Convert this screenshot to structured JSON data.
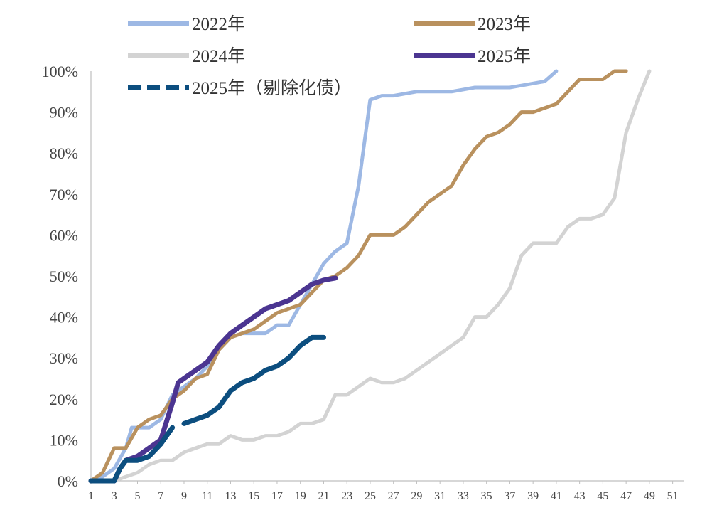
{
  "chart_data": {
    "type": "line",
    "title": "",
    "xlabel": "",
    "ylabel": "",
    "xlim": [
      1,
      52
    ],
    "ylim": [
      0,
      100
    ],
    "grid": false,
    "legend_position": "top",
    "x_ticks": [
      1,
      3,
      5,
      7,
      9,
      11,
      13,
      15,
      17,
      19,
      21,
      23,
      25,
      27,
      29,
      31,
      33,
      35,
      37,
      39,
      41,
      43,
      45,
      47,
      49,
      51
    ],
    "x_tick_labels": [
      "1",
      "3",
      "5",
      "7",
      "9",
      "11",
      "13",
      "15",
      "17",
      "19",
      "21",
      "23",
      "25",
      "27",
      "29",
      "31",
      "33",
      "35",
      "37",
      "39",
      "41",
      "43",
      "45",
      "47",
      "49",
      "51"
    ],
    "y_ticks": [
      0,
      10,
      20,
      30,
      40,
      50,
      60,
      70,
      80,
      90,
      100
    ],
    "y_tick_labels": [
      "0%",
      "10%",
      "20%",
      "30%",
      "40%",
      "50%",
      "60%",
      "70%",
      "80%",
      "90%",
      "100%"
    ],
    "series": [
      {
        "name": "2022年",
        "color": "#9db8e4",
        "style": "solid",
        "legend_row": 0,
        "legend_col": 0,
        "points": [
          [
            1,
            0
          ],
          [
            2,
            1
          ],
          [
            3,
            3
          ],
          [
            4,
            8
          ],
          [
            4.5,
            13
          ],
          [
            5,
            13
          ],
          [
            6,
            13
          ],
          [
            7,
            15
          ],
          [
            8,
            21
          ],
          [
            9,
            23
          ],
          [
            10,
            25
          ],
          [
            11,
            28
          ],
          [
            12,
            32
          ],
          [
            13,
            35
          ],
          [
            14,
            36
          ],
          [
            15,
            36
          ],
          [
            16,
            36
          ],
          [
            17,
            38
          ],
          [
            18,
            38
          ],
          [
            19,
            43
          ],
          [
            20,
            48
          ],
          [
            21,
            53
          ],
          [
            22,
            56
          ],
          [
            23,
            58
          ],
          [
            24,
            72
          ],
          [
            25,
            93
          ],
          [
            26,
            94
          ],
          [
            27,
            94
          ],
          [
            28,
            94.5
          ],
          [
            29,
            95
          ],
          [
            30,
            95
          ],
          [
            31,
            95
          ],
          [
            32,
            95
          ],
          [
            33,
            95.5
          ],
          [
            34,
            96
          ],
          [
            35,
            96
          ],
          [
            36,
            96
          ],
          [
            37,
            96
          ],
          [
            38,
            96.5
          ],
          [
            39,
            97
          ],
          [
            40,
            97.5
          ],
          [
            41,
            100
          ]
        ]
      },
      {
        "name": "2023年",
        "color": "#b9915e",
        "style": "solid",
        "legend_row": 0,
        "legend_col": 1,
        "points": [
          [
            1,
            0
          ],
          [
            2,
            2
          ],
          [
            3,
            8
          ],
          [
            4,
            8
          ],
          [
            5,
            13
          ],
          [
            6,
            15
          ],
          [
            7,
            16
          ],
          [
            8,
            20
          ],
          [
            9,
            22
          ],
          [
            10,
            25
          ],
          [
            11,
            26
          ],
          [
            12,
            32
          ],
          [
            13,
            35
          ],
          [
            14,
            36
          ],
          [
            15,
            37
          ],
          [
            16,
            39
          ],
          [
            17,
            41
          ],
          [
            18,
            42
          ],
          [
            19,
            43
          ],
          [
            20,
            46
          ],
          [
            21,
            49
          ],
          [
            22,
            50
          ],
          [
            23,
            52
          ],
          [
            24,
            55
          ],
          [
            25,
            60
          ],
          [
            26,
            60
          ],
          [
            27,
            60
          ],
          [
            28,
            62
          ],
          [
            29,
            65
          ],
          [
            30,
            68
          ],
          [
            31,
            70
          ],
          [
            32,
            72
          ],
          [
            33,
            77
          ],
          [
            34,
            81
          ],
          [
            35,
            84
          ],
          [
            36,
            85
          ],
          [
            37,
            87
          ],
          [
            38,
            90
          ],
          [
            39,
            90
          ],
          [
            40,
            91
          ],
          [
            41,
            92
          ],
          [
            42,
            95
          ],
          [
            43,
            98
          ],
          [
            44,
            98
          ],
          [
            45,
            98
          ],
          [
            46,
            100
          ],
          [
            47,
            101
          ]
        ]
      },
      {
        "name": "2024年",
        "color": "#d3d3d3",
        "style": "solid",
        "legend_row": 1,
        "legend_col": 0,
        "points": [
          [
            1,
            0
          ],
          [
            3,
            0
          ],
          [
            4,
            1
          ],
          [
            5,
            2
          ],
          [
            6,
            4
          ],
          [
            7,
            5
          ],
          [
            8,
            5
          ],
          [
            9,
            7
          ],
          [
            10,
            8
          ],
          [
            11,
            9
          ],
          [
            12,
            9
          ],
          [
            13,
            11
          ],
          [
            14,
            10
          ],
          [
            15,
            10
          ],
          [
            16,
            11
          ],
          [
            17,
            11
          ],
          [
            18,
            12
          ],
          [
            19,
            14
          ],
          [
            20,
            14
          ],
          [
            21,
            15
          ],
          [
            22,
            21
          ],
          [
            23,
            21
          ],
          [
            24,
            23
          ],
          [
            25,
            25
          ],
          [
            26,
            24
          ],
          [
            27,
            24
          ],
          [
            28,
            25
          ],
          [
            29,
            27
          ],
          [
            30,
            29
          ],
          [
            31,
            31
          ],
          [
            32,
            33
          ],
          [
            33,
            35
          ],
          [
            34,
            40
          ],
          [
            35,
            40
          ],
          [
            36,
            43
          ],
          [
            37,
            47
          ],
          [
            38,
            55
          ],
          [
            39,
            58
          ],
          [
            40,
            58
          ],
          [
            41,
            58
          ],
          [
            42,
            62
          ],
          [
            43,
            64
          ],
          [
            44,
            64
          ],
          [
            45,
            65
          ],
          [
            46,
            69
          ],
          [
            47,
            85
          ],
          [
            48,
            93
          ],
          [
            49,
            100
          ]
        ]
      },
      {
        "name": "2025年",
        "color": "#4b3591",
        "style": "solid",
        "legend_row": 1,
        "legend_col": 1,
        "points": [
          [
            1,
            0
          ],
          [
            2,
            0
          ],
          [
            3,
            0
          ],
          [
            3.5,
            3
          ],
          [
            4,
            5
          ],
          [
            5,
            6
          ],
          [
            6,
            8
          ],
          [
            7,
            10
          ],
          [
            8,
            19
          ],
          [
            8.5,
            24
          ],
          [
            9,
            25
          ],
          [
            10,
            27
          ],
          [
            11,
            29
          ],
          [
            12,
            33
          ],
          [
            13,
            36
          ],
          [
            14,
            38
          ],
          [
            15,
            40
          ],
          [
            16,
            42
          ],
          [
            17,
            43
          ],
          [
            18,
            44
          ],
          [
            19,
            46
          ],
          [
            20,
            48
          ],
          [
            21,
            49
          ],
          [
            22,
            49.5
          ]
        ]
      },
      {
        "name": "2025年（剔除化债）",
        "color": "#0c4e7f",
        "style": "dashed",
        "legend_row": 2,
        "legend_col": 0,
        "segments": [
          [
            [
              1,
              0
            ],
            [
              2,
              0
            ],
            [
              3,
              0
            ],
            [
              3.5,
              3
            ],
            [
              4,
              5
            ],
            [
              5,
              5
            ],
            [
              6,
              6
            ],
            [
              7,
              9
            ],
            [
              8,
              13
            ]
          ],
          [
            [
              9,
              14
            ],
            [
              10,
              15
            ],
            [
              11,
              16
            ],
            [
              12,
              18
            ],
            [
              13,
              22
            ],
            [
              14,
              24
            ],
            [
              15,
              25
            ],
            [
              16,
              27
            ],
            [
              17,
              28
            ],
            [
              18,
              30
            ],
            [
              19,
              33
            ],
            [
              20,
              35
            ],
            [
              21,
              35
            ]
          ]
        ]
      }
    ]
  }
}
